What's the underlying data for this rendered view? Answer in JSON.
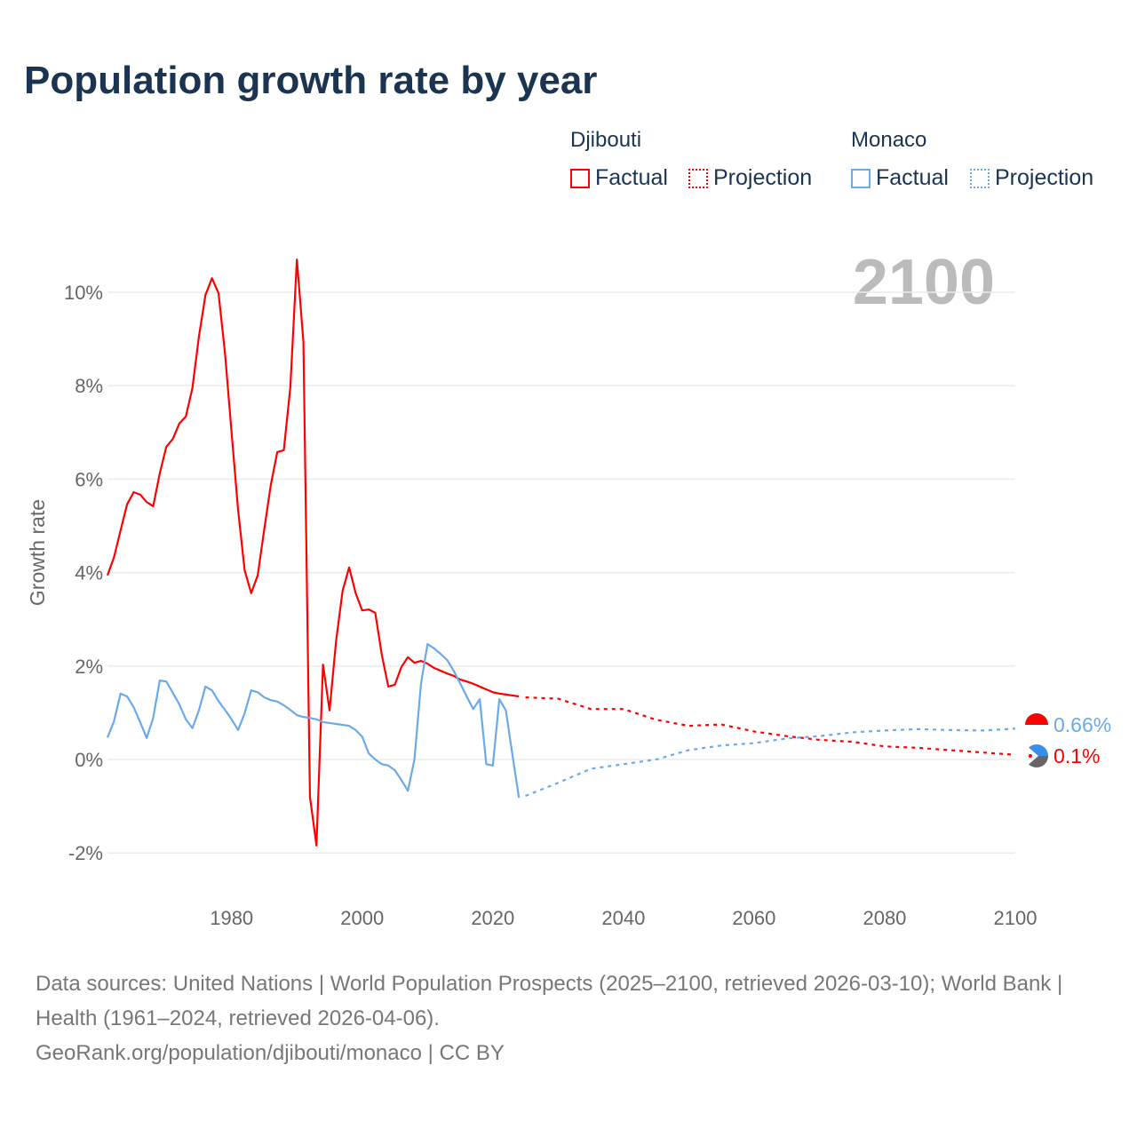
{
  "title": "Population growth rate by year",
  "legend": {
    "groups": [
      {
        "name": "Djibouti",
        "color": "#ff0000",
        "factual": "Factual",
        "projection": "Projection"
      },
      {
        "name": "Monaco",
        "color": "#6aaae8",
        "factual": "Factual",
        "projection": "Projection"
      }
    ]
  },
  "footer": {
    "sources": "Data sources: United Nations | World Population Prospects (2025–2100, retrieved 2026-03-10); World Bank | Health (1961–2024, retrieved 2026-04-06).",
    "credit": "GeoRank.org/population/djibouti/monaco | CC BY"
  },
  "chart_data": {
    "type": "line",
    "title": "Population growth rate by year",
    "ylabel": "Growth rate",
    "xlabel": "",
    "year_display": "2100",
    "xlim": [
      1961,
      2100
    ],
    "ylim": [
      -2.9,
      11
    ],
    "xticks": [
      1980,
      2000,
      2020,
      2040,
      2060,
      2080,
      2100
    ],
    "yticks": [
      -2,
      0,
      2,
      4,
      6,
      8,
      10
    ],
    "ytick_labels": [
      "-2%",
      "0%",
      "2%",
      "4%",
      "6%",
      "8%",
      "10%"
    ],
    "grid": true,
    "series": [
      {
        "name": "Djibouti",
        "color": "#ff0000",
        "end_label": "0.1%",
        "factual": {
          "start": 1961,
          "values": [
            3.94,
            4.33,
            4.9,
            5.46,
            5.72,
            5.67,
            5.51,
            5.42,
            6.12,
            6.69,
            6.86,
            7.19,
            7.34,
            7.95,
            9.05,
            9.94,
            10.3,
            9.98,
            8.69,
            7.0,
            5.34,
            4.05,
            3.56,
            3.94,
            4.92,
            5.87,
            6.58,
            6.62,
            7.97,
            10.7,
            8.94,
            -0.8,
            -1.84,
            2.03,
            1.05,
            2.53,
            3.61,
            4.11,
            3.56,
            3.19,
            3.21,
            3.14,
            2.24,
            1.56,
            1.6,
            1.98,
            2.19,
            2.07,
            2.11,
            2.05,
            1.96,
            1.9,
            1.84,
            1.79,
            1.71,
            1.67,
            1.62,
            1.56,
            1.5,
            1.44,
            1.41,
            1.39,
            1.37,
            1.35
          ]
        },
        "projection": {
          "x": [
            2025,
            2030,
            2035,
            2040,
            2045,
            2050,
            2055,
            2060,
            2065,
            2070,
            2075,
            2080,
            2085,
            2090,
            2095,
            2100
          ],
          "values": [
            1.33,
            1.3,
            1.08,
            1.08,
            0.85,
            0.72,
            0.75,
            0.6,
            0.5,
            0.42,
            0.38,
            0.28,
            0.25,
            0.2,
            0.15,
            0.1
          ]
        }
      },
      {
        "name": "Monaco",
        "color": "#6aaae8",
        "end_label": "0.66%",
        "factual": {
          "start": 1961,
          "values": [
            0.47,
            0.82,
            1.41,
            1.35,
            1.12,
            0.8,
            0.46,
            0.89,
            1.69,
            1.67,
            1.43,
            1.18,
            0.86,
            0.67,
            1.05,
            1.56,
            1.48,
            1.25,
            1.06,
            0.86,
            0.63,
            0.99,
            1.48,
            1.44,
            1.33,
            1.27,
            1.24,
            1.16,
            1.06,
            0.95,
            0.91,
            0.89,
            0.86,
            0.8,
            0.78,
            0.76,
            0.74,
            0.72,
            0.63,
            0.49,
            0.13,
            0.0,
            -0.1,
            -0.13,
            -0.23,
            -0.44,
            -0.67,
            0.0,
            1.62,
            2.47,
            2.38,
            2.26,
            2.13,
            1.9,
            1.63,
            1.35,
            1.08,
            1.29,
            -0.1,
            -0.13,
            1.29,
            1.05,
            0.1,
            -0.82
          ]
        },
        "projection": {
          "x": [
            2025,
            2030,
            2035,
            2040,
            2045,
            2050,
            2055,
            2060,
            2065,
            2070,
            2075,
            2080,
            2085,
            2090,
            2095,
            2100
          ],
          "values": [
            -0.78,
            -0.5,
            -0.2,
            -0.1,
            0.0,
            0.2,
            0.3,
            0.35,
            0.45,
            0.5,
            0.58,
            0.62,
            0.65,
            0.63,
            0.62,
            0.66
          ]
        }
      }
    ]
  }
}
